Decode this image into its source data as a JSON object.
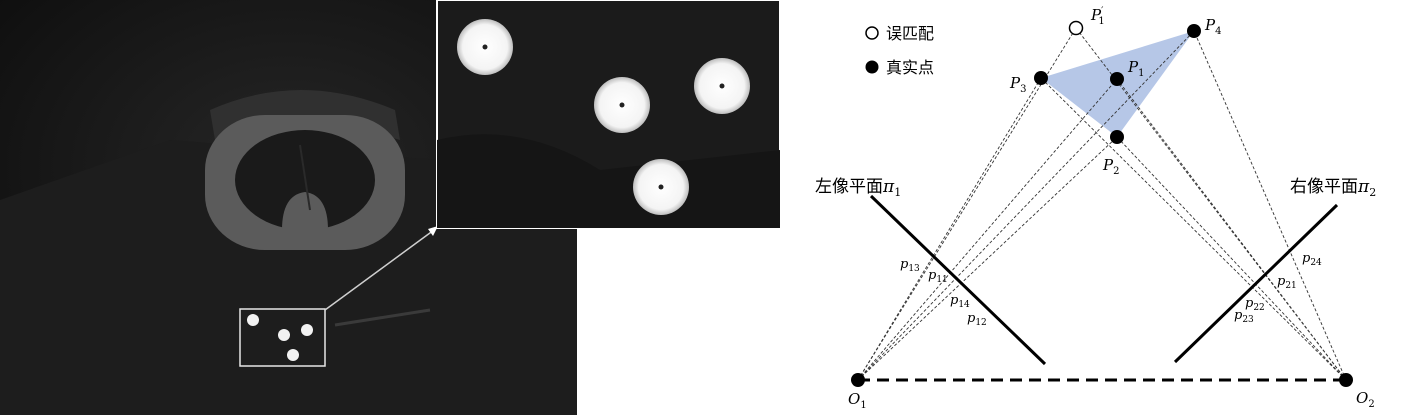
{
  "legend": {
    "mismatch_label": "误匹配",
    "real_point_label": "真实点"
  },
  "planes": {
    "left_label": "左像平面",
    "left_symbol": "π",
    "left_sub": "1",
    "right_label": "右像平面",
    "right_symbol": "π",
    "right_sub": "2"
  },
  "points": {
    "P1_prime": {
      "base": "P",
      "sub": "1",
      "sup": "′"
    },
    "P1": {
      "base": "P",
      "sub": "1"
    },
    "P2": {
      "base": "P",
      "sub": "2"
    },
    "P3": {
      "base": "P",
      "sub": "3"
    },
    "P4": {
      "base": "P",
      "sub": "4"
    }
  },
  "cameras": {
    "O1": {
      "base": "O",
      "sub": "1"
    },
    "O2": {
      "base": "O",
      "sub": "2"
    }
  },
  "image_points": {
    "p13": {
      "base": "p",
      "sub": "13"
    },
    "p11": {
      "base": "p",
      "sub": "11"
    },
    "p14": {
      "base": "p",
      "sub": "14"
    },
    "p12": {
      "base": "p",
      "sub": "12"
    },
    "p24": {
      "base": "p",
      "sub": "24"
    },
    "p21": {
      "base": "p",
      "sub": "21"
    },
    "p22": {
      "base": "p",
      "sub": "22"
    },
    "p23": {
      "base": "p",
      "sub": "23"
    }
  },
  "colors": {
    "triangle_fill": "#a9bde3",
    "photo_bg": "#141414"
  }
}
